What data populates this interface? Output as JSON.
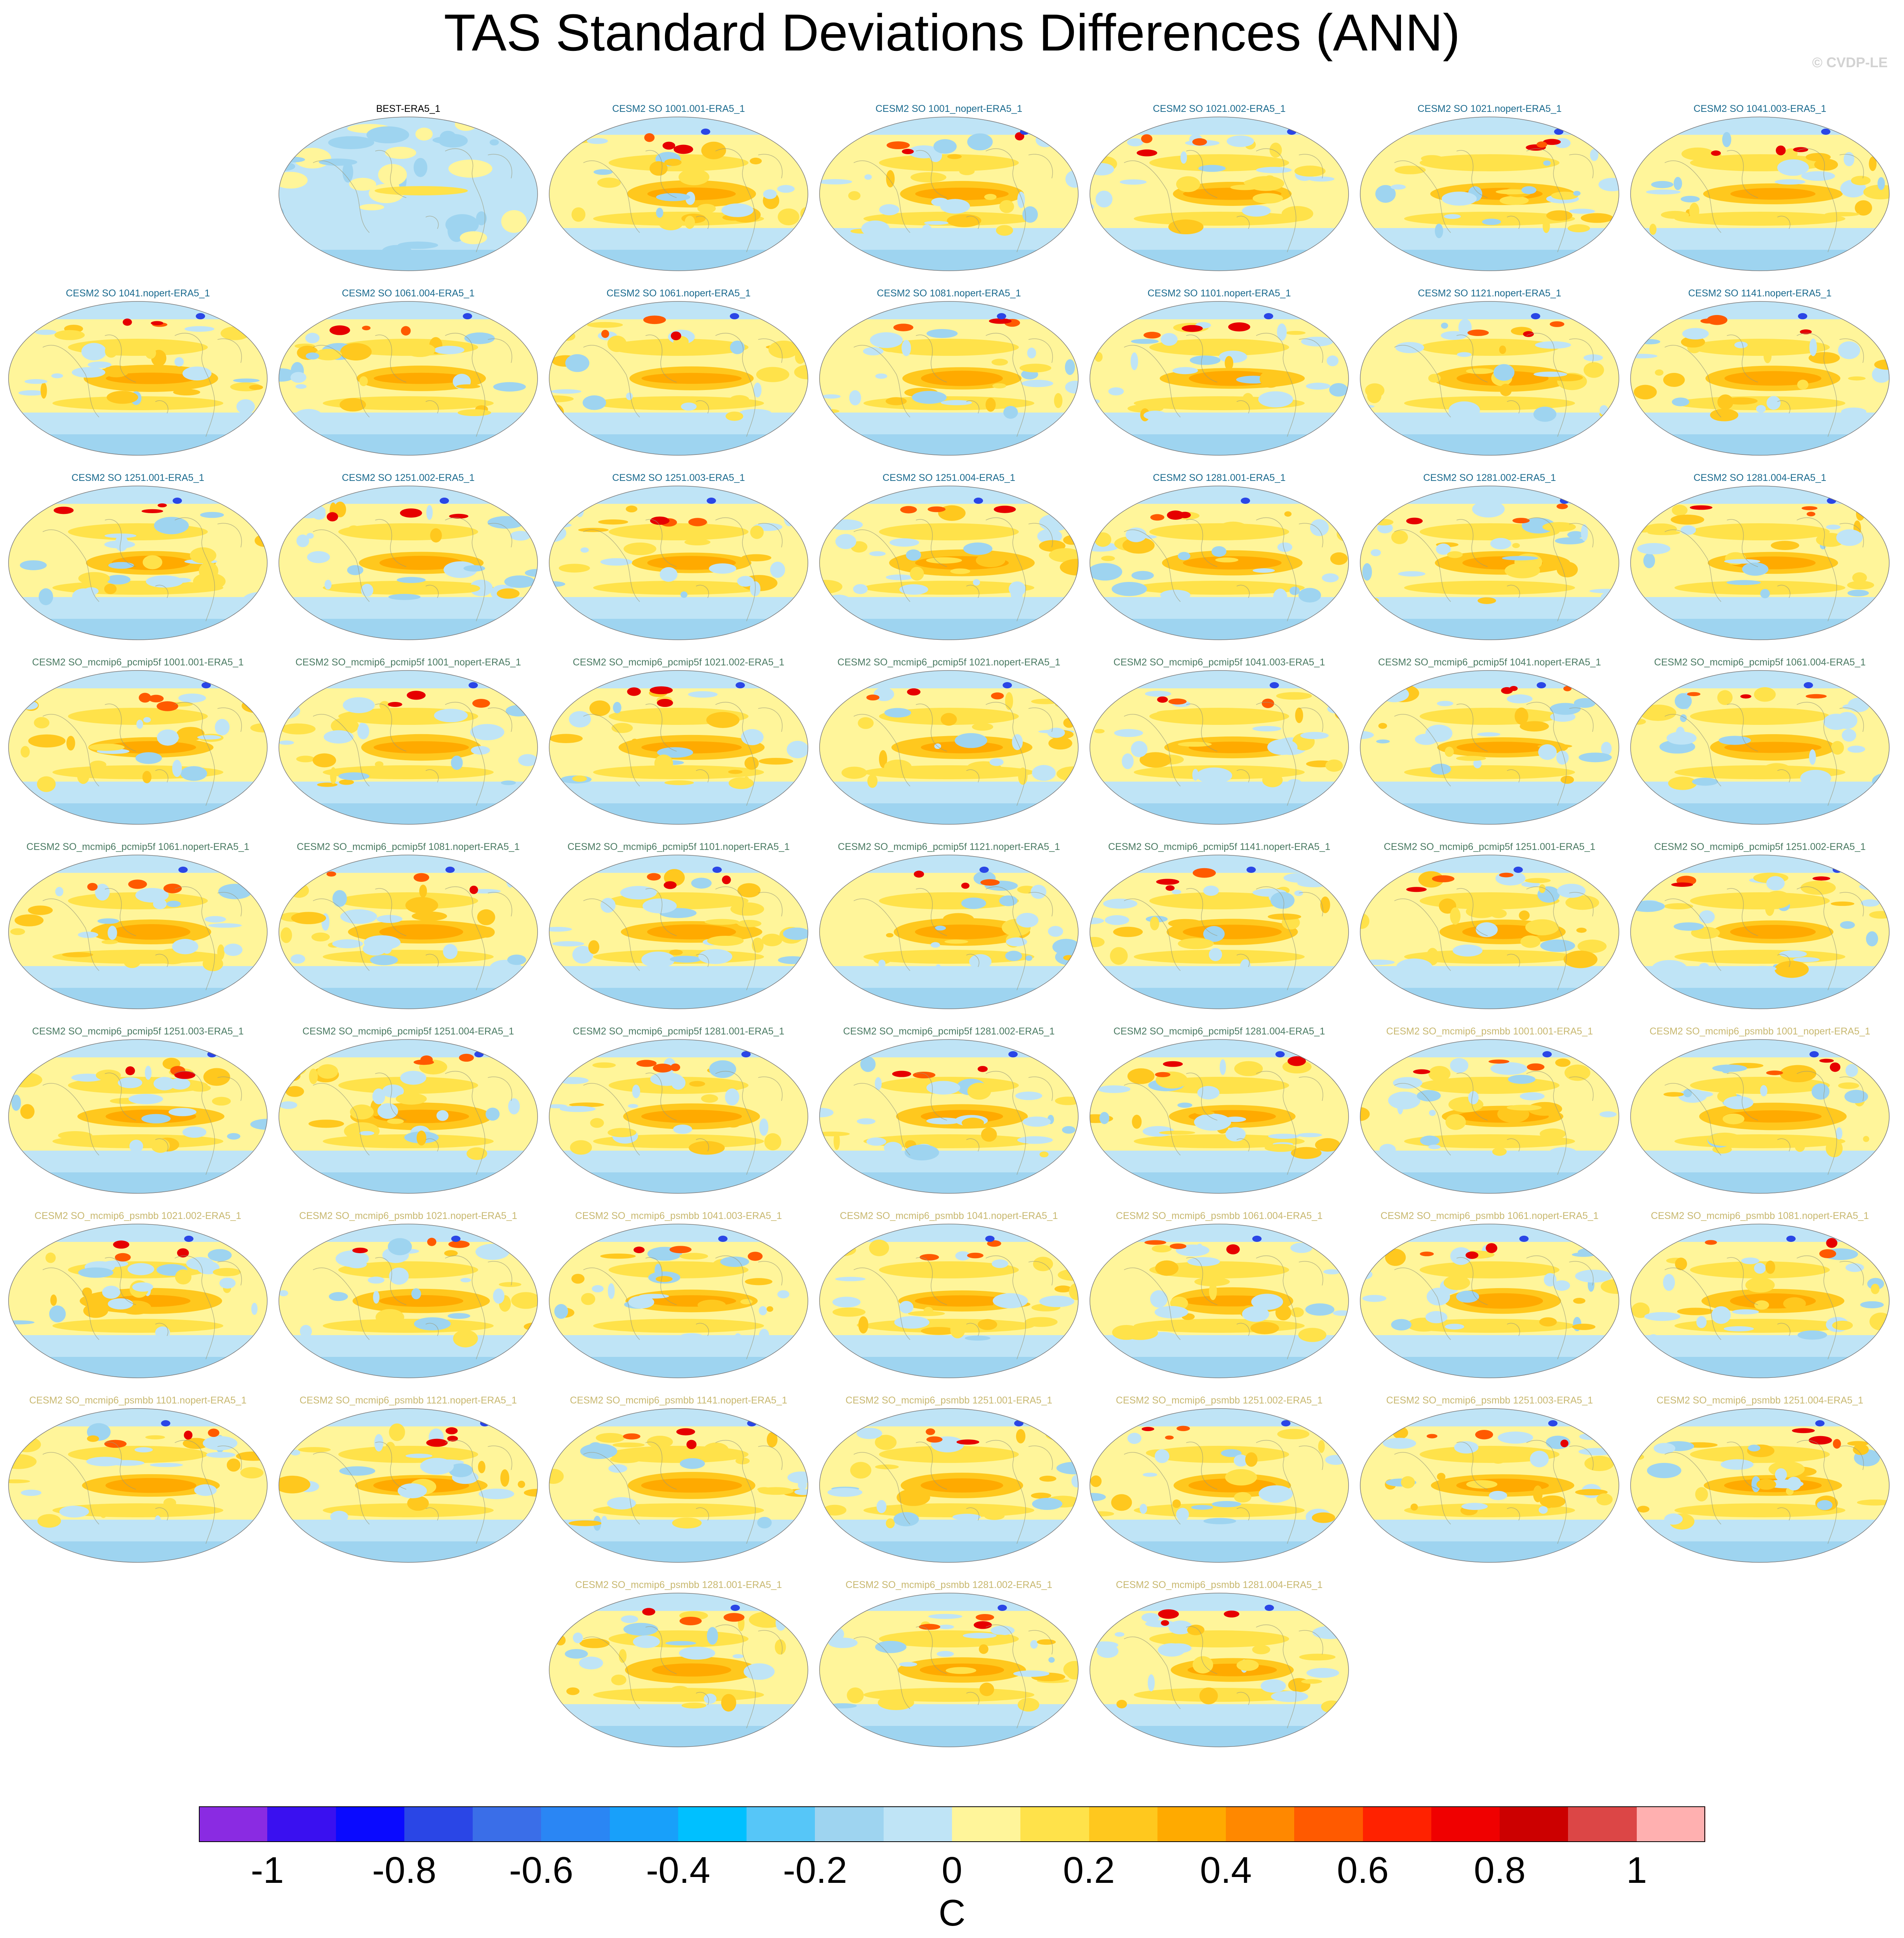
{
  "title": "TAS Standard Deviations Differences (ANN)",
  "watermark": "© CVDP-LE",
  "panels": [
    {
      "label": "BEST-ERA5_1",
      "group": "best"
    },
    {
      "label": "CESM2 SO 1001.001-ERA5_1",
      "group": "so"
    },
    {
      "label": "CESM2 SO 1001_nopert-ERA5_1",
      "group": "so"
    },
    {
      "label": "CESM2 SO 1021.002-ERA5_1",
      "group": "so"
    },
    {
      "label": "CESM2 SO 1021.nopert-ERA5_1",
      "group": "so"
    },
    {
      "label": "CESM2 SO 1041.003-ERA5_1",
      "group": "so"
    },
    {
      "label": "CESM2 SO 1041.nopert-ERA5_1",
      "group": "so"
    },
    {
      "label": "CESM2 SO 1061.004-ERA5_1",
      "group": "so"
    },
    {
      "label": "CESM2 SO 1061.nopert-ERA5_1",
      "group": "so"
    },
    {
      "label": "CESM2 SO 1081.nopert-ERA5_1",
      "group": "so"
    },
    {
      "label": "CESM2 SO 1101.nopert-ERA5_1",
      "group": "so"
    },
    {
      "label": "CESM2 SO 1121.nopert-ERA5_1",
      "group": "so"
    },
    {
      "label": "CESM2 SO 1141.nopert-ERA5_1",
      "group": "so"
    },
    {
      "label": "CESM2 SO 1251.001-ERA5_1",
      "group": "so"
    },
    {
      "label": "CESM2 SO 1251.002-ERA5_1",
      "group": "so"
    },
    {
      "label": "CESM2 SO 1251.003-ERA5_1",
      "group": "so"
    },
    {
      "label": "CESM2 SO 1251.004-ERA5_1",
      "group": "so"
    },
    {
      "label": "CESM2 SO 1281.001-ERA5_1",
      "group": "so"
    },
    {
      "label": "CESM2 SO 1281.002-ERA5_1",
      "group": "so"
    },
    {
      "label": "CESM2 SO 1281.004-ERA5_1",
      "group": "so"
    },
    {
      "label": "CESM2 SO_mcmip6_pcmip5f 1001.001-ERA5_1",
      "group": "pc"
    },
    {
      "label": "CESM2 SO_mcmip6_pcmip5f 1001_nopert-ERA5_1",
      "group": "pc"
    },
    {
      "label": "CESM2 SO_mcmip6_pcmip5f 1021.002-ERA5_1",
      "group": "pc"
    },
    {
      "label": "CESM2 SO_mcmip6_pcmip5f 1021.nopert-ERA5_1",
      "group": "pc"
    },
    {
      "label": "CESM2 SO_mcmip6_pcmip5f 1041.003-ERA5_1",
      "group": "pc"
    },
    {
      "label": "CESM2 SO_mcmip6_pcmip5f 1041.nopert-ERA5_1",
      "group": "pc"
    },
    {
      "label": "CESM2 SO_mcmip6_pcmip5f 1061.004-ERA5_1",
      "group": "pc"
    },
    {
      "label": "CESM2 SO_mcmip6_pcmip5f 1061.nopert-ERA5_1",
      "group": "pc"
    },
    {
      "label": "CESM2 SO_mcmip6_pcmip5f 1081.nopert-ERA5_1",
      "group": "pc"
    },
    {
      "label": "CESM2 SO_mcmip6_pcmip5f 1101.nopert-ERA5_1",
      "group": "pc"
    },
    {
      "label": "CESM2 SO_mcmip6_pcmip5f 1121.nopert-ERA5_1",
      "group": "pc"
    },
    {
      "label": "CESM2 SO_mcmip6_pcmip5f 1141.nopert-ERA5_1",
      "group": "pc"
    },
    {
      "label": "CESM2 SO_mcmip6_pcmip5f 1251.001-ERA5_1",
      "group": "pc"
    },
    {
      "label": "CESM2 SO_mcmip6_pcmip5f 1251.002-ERA5_1",
      "group": "pc"
    },
    {
      "label": "CESM2 SO_mcmip6_pcmip5f 1251.003-ERA5_1",
      "group": "pc"
    },
    {
      "label": "CESM2 SO_mcmip6_pcmip5f 1251.004-ERA5_1",
      "group": "pc"
    },
    {
      "label": "CESM2 SO_mcmip6_pcmip5f 1281.001-ERA5_1",
      "group": "pc"
    },
    {
      "label": "CESM2 SO_mcmip6_pcmip5f 1281.002-ERA5_1",
      "group": "pc"
    },
    {
      "label": "CESM2 SO_mcmip6_pcmip5f 1281.004-ERA5_1",
      "group": "pc"
    },
    {
      "label": "CESM2 SO_mcmip6_psmbb 1001.001-ERA5_1",
      "group": "ps"
    },
    {
      "label": "CESM2 SO_mcmip6_psmbb 1001_nopert-ERA5_1",
      "group": "ps"
    },
    {
      "label": "CESM2 SO_mcmip6_psmbb 1021.002-ERA5_1",
      "group": "ps"
    },
    {
      "label": "CESM2 SO_mcmip6_psmbb 1021.nopert-ERA5_1",
      "group": "ps"
    },
    {
      "label": "CESM2 SO_mcmip6_psmbb 1041.003-ERA5_1",
      "group": "ps"
    },
    {
      "label": "CESM2 SO_mcmip6_psmbb 1041.nopert-ERA5_1",
      "group": "ps"
    },
    {
      "label": "CESM2 SO_mcmip6_psmbb 1061.004-ERA5_1",
      "group": "ps"
    },
    {
      "label": "CESM2 SO_mcmip6_psmbb 1061.nopert-ERA5_1",
      "group": "ps"
    },
    {
      "label": "CESM2 SO_mcmip6_psmbb 1081.nopert-ERA5_1",
      "group": "ps"
    },
    {
      "label": "CESM2 SO_mcmip6_psmbb 1101.nopert-ERA5_1",
      "group": "ps"
    },
    {
      "label": "CESM2 SO_mcmip6_psmbb 1121.nopert-ERA5_1",
      "group": "ps"
    },
    {
      "label": "CESM2 SO_mcmip6_psmbb 1141.nopert-ERA5_1",
      "group": "ps"
    },
    {
      "label": "CESM2 SO_mcmip6_psmbb 1251.001-ERA5_1",
      "group": "ps"
    },
    {
      "label": "CESM2 SO_mcmip6_psmbb 1251.002-ERA5_1",
      "group": "ps"
    },
    {
      "label": "CESM2 SO_mcmip6_psmbb 1251.003-ERA5_1",
      "group": "ps"
    },
    {
      "label": "CESM2 SO_mcmip6_psmbb 1251.004-ERA5_1",
      "group": "ps"
    },
    {
      "label": "CESM2 SO_mcmip6_psmbb 1281.001-ERA5_1",
      "group": "ps"
    },
    {
      "label": "CESM2 SO_mcmip6_psmbb 1281.002-ERA5_1",
      "group": "ps"
    },
    {
      "label": "CESM2 SO_mcmip6_psmbb 1281.004-ERA5_1",
      "group": "ps"
    }
  ],
  "colorbar": {
    "units": "C",
    "ticks": [
      "-1",
      "-0.8",
      "-0.6",
      "-0.4",
      "-0.2",
      "0",
      "0.2",
      "0.4",
      "0.6",
      "0.8",
      "1"
    ],
    "colors": [
      "#8a2be2",
      "#3a10f0",
      "#0a0aff",
      "#2a46e6",
      "#3a6ee8",
      "#2a86f4",
      "#18a0fa",
      "#00c0ff",
      "#56c6f8",
      "#9ed4f0",
      "#bfe4f6",
      "#fff59a",
      "#ffe24a",
      "#ffc81e",
      "#ffaa00",
      "#ff8800",
      "#ff5a00",
      "#ff2200",
      "#f00000",
      "#cc0000",
      "#dc4646",
      "#ffb0b0"
    ]
  }
}
